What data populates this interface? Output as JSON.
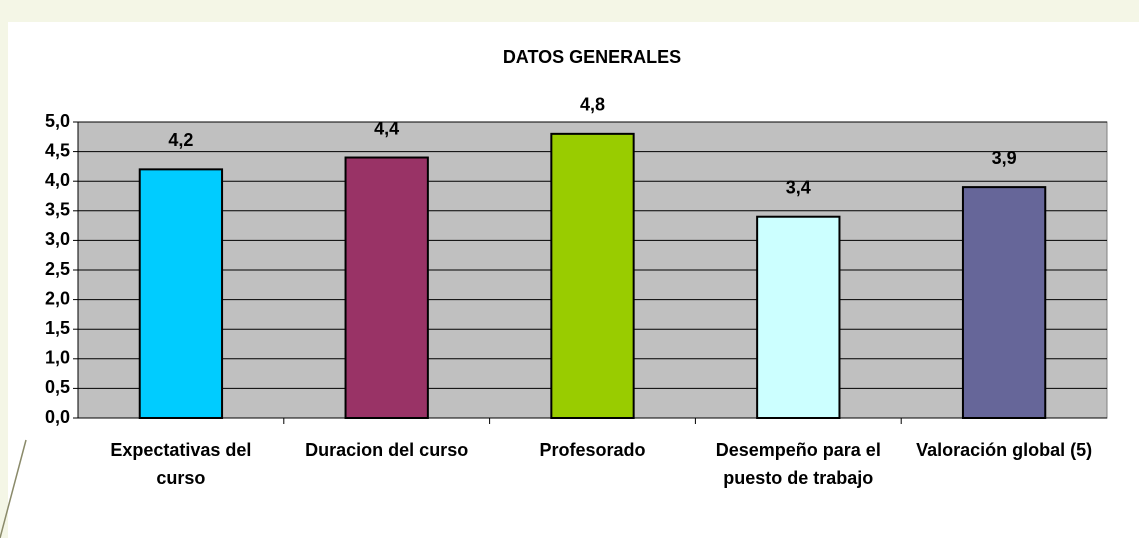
{
  "chart_data": {
    "type": "bar",
    "title": "DATOS GENERALES",
    "categories": [
      "Expectativas del curso",
      "Duracion del curso",
      "Profesorado",
      "Desempeño para el puesto de trabajo",
      "Valoración global (5)"
    ],
    "values": [
      4.2,
      4.4,
      4.8,
      3.4,
      3.9
    ],
    "value_labels": [
      "4,2",
      "4,4",
      "4,8",
      "3,4",
      "3,9"
    ],
    "colors": [
      "#00ccff",
      "#993366",
      "#99cc00",
      "#ccffff",
      "#666699"
    ],
    "ylim": [
      0,
      5
    ],
    "yticks": [
      {
        "value": 0,
        "label": "0,0"
      },
      {
        "value": 0.5,
        "label": "0,5"
      },
      {
        "value": 1,
        "label": "1,0"
      },
      {
        "value": 1.5,
        "label": "1,5"
      },
      {
        "value": 2,
        "label": "2,0"
      },
      {
        "value": 2.5,
        "label": "2,5"
      },
      {
        "value": 3,
        "label": "3,0"
      },
      {
        "value": 3.5,
        "label": "3,5"
      },
      {
        "value": 4,
        "label": "4,0"
      },
      {
        "value": 4.5,
        "label": "4,5"
      },
      {
        "value": 5,
        "label": "5,0"
      }
    ],
    "grid": true
  }
}
